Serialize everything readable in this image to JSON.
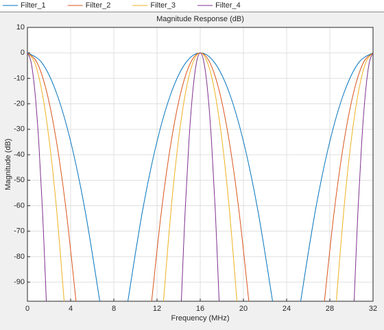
{
  "chart_data": {
    "type": "line",
    "title": "Magnitude Response (dB)",
    "x_label": "Frequency (MHz)",
    "y_label": "Magnitude (dB)",
    "xlim": [
      0,
      32
    ],
    "ylim": [
      -97.5,
      10
    ],
    "xticks": [
      0,
      4,
      8,
      12,
      16,
      20,
      24,
      28,
      32
    ],
    "yticks": [
      10,
      0,
      -10,
      -20,
      -30,
      -40,
      -50,
      -60,
      -70,
      -80,
      -90
    ],
    "grid": true,
    "legend": "top",
    "series": [
      {
        "name": "Filter_1",
        "color": "#0072BD",
        "x": [
          0,
          1.34,
          2.68,
          4.02,
          5.36,
          6.7,
          null,
          9.3,
          10.64,
          11.98,
          13.32,
          14.66,
          16,
          17.34,
          18.68,
          20.02,
          21.36,
          22.7,
          null,
          25.3,
          26.64,
          27.98,
          29.32,
          30.66,
          32
        ],
        "values": [
          0,
          -3.9,
          -15.6,
          -35.1,
          -62.4,
          -97.5,
          null,
          -97.5,
          -62.4,
          -35.1,
          -15.6,
          -3.9,
          0,
          -3.9,
          -15.6,
          -35.1,
          -62.4,
          -97.5,
          null,
          -97.5,
          -62.4,
          -35.1,
          -15.6,
          -3.9,
          0
        ]
      },
      {
        "name": "Filter_2",
        "color": "#D95319",
        "x": [
          0,
          0.9,
          1.8,
          2.7,
          3.6,
          4.5,
          null,
          11.5,
          12.4,
          13.3,
          14.2,
          15.1,
          16,
          16.9,
          17.8,
          18.7,
          19.6,
          20.5,
          null,
          27.5,
          28.4,
          29.3,
          30.2,
          31.1,
          32
        ],
        "values": [
          0,
          -3.9,
          -15.6,
          -35.1,
          -62.4,
          -97.5,
          null,
          -97.5,
          -62.4,
          -35.1,
          -15.6,
          -3.9,
          0,
          -3.9,
          -15.6,
          -35.1,
          -62.4,
          -97.5,
          null,
          -97.5,
          -62.4,
          -35.1,
          -15.6,
          -3.9,
          0
        ]
      },
      {
        "name": "Filter_3",
        "color": "#EDB120",
        "x": [
          0,
          0.68,
          1.36,
          2.04,
          2.72,
          3.4,
          null,
          12.6,
          13.28,
          13.96,
          14.64,
          15.32,
          16,
          16.68,
          17.36,
          18.04,
          18.72,
          19.4,
          null,
          28.6,
          29.28,
          29.96,
          30.64,
          31.32,
          32
        ],
        "values": [
          0,
          -3.9,
          -15.6,
          -35.1,
          -62.4,
          -97.5,
          null,
          -97.5,
          -62.4,
          -35.1,
          -15.6,
          -3.9,
          0,
          -3.9,
          -15.6,
          -35.1,
          -62.4,
          -97.5,
          null,
          -97.5,
          -62.4,
          -35.1,
          -15.6,
          -3.9,
          0
        ]
      },
      {
        "name": "Filter_4",
        "color": "#7E2F8E",
        "x": [
          0,
          0.35,
          0.7,
          1.05,
          1.4,
          1.75,
          null,
          14.25,
          14.6,
          14.95,
          15.3,
          15.65,
          16,
          16.35,
          16.7,
          17.05,
          17.4,
          17.75,
          null,
          30.25,
          30.6,
          30.95,
          31.3,
          31.65,
          32
        ],
        "values": [
          0,
          -3.9,
          -15.6,
          -35.1,
          -62.4,
          -97.5,
          null,
          -97.5,
          -62.4,
          -35.1,
          -15.6,
          -3.9,
          0,
          -3.9,
          -15.6,
          -35.1,
          -62.4,
          -97.5,
          null,
          -97.5,
          -62.4,
          -35.1,
          -15.6,
          -3.9,
          0
        ]
      }
    ]
  }
}
